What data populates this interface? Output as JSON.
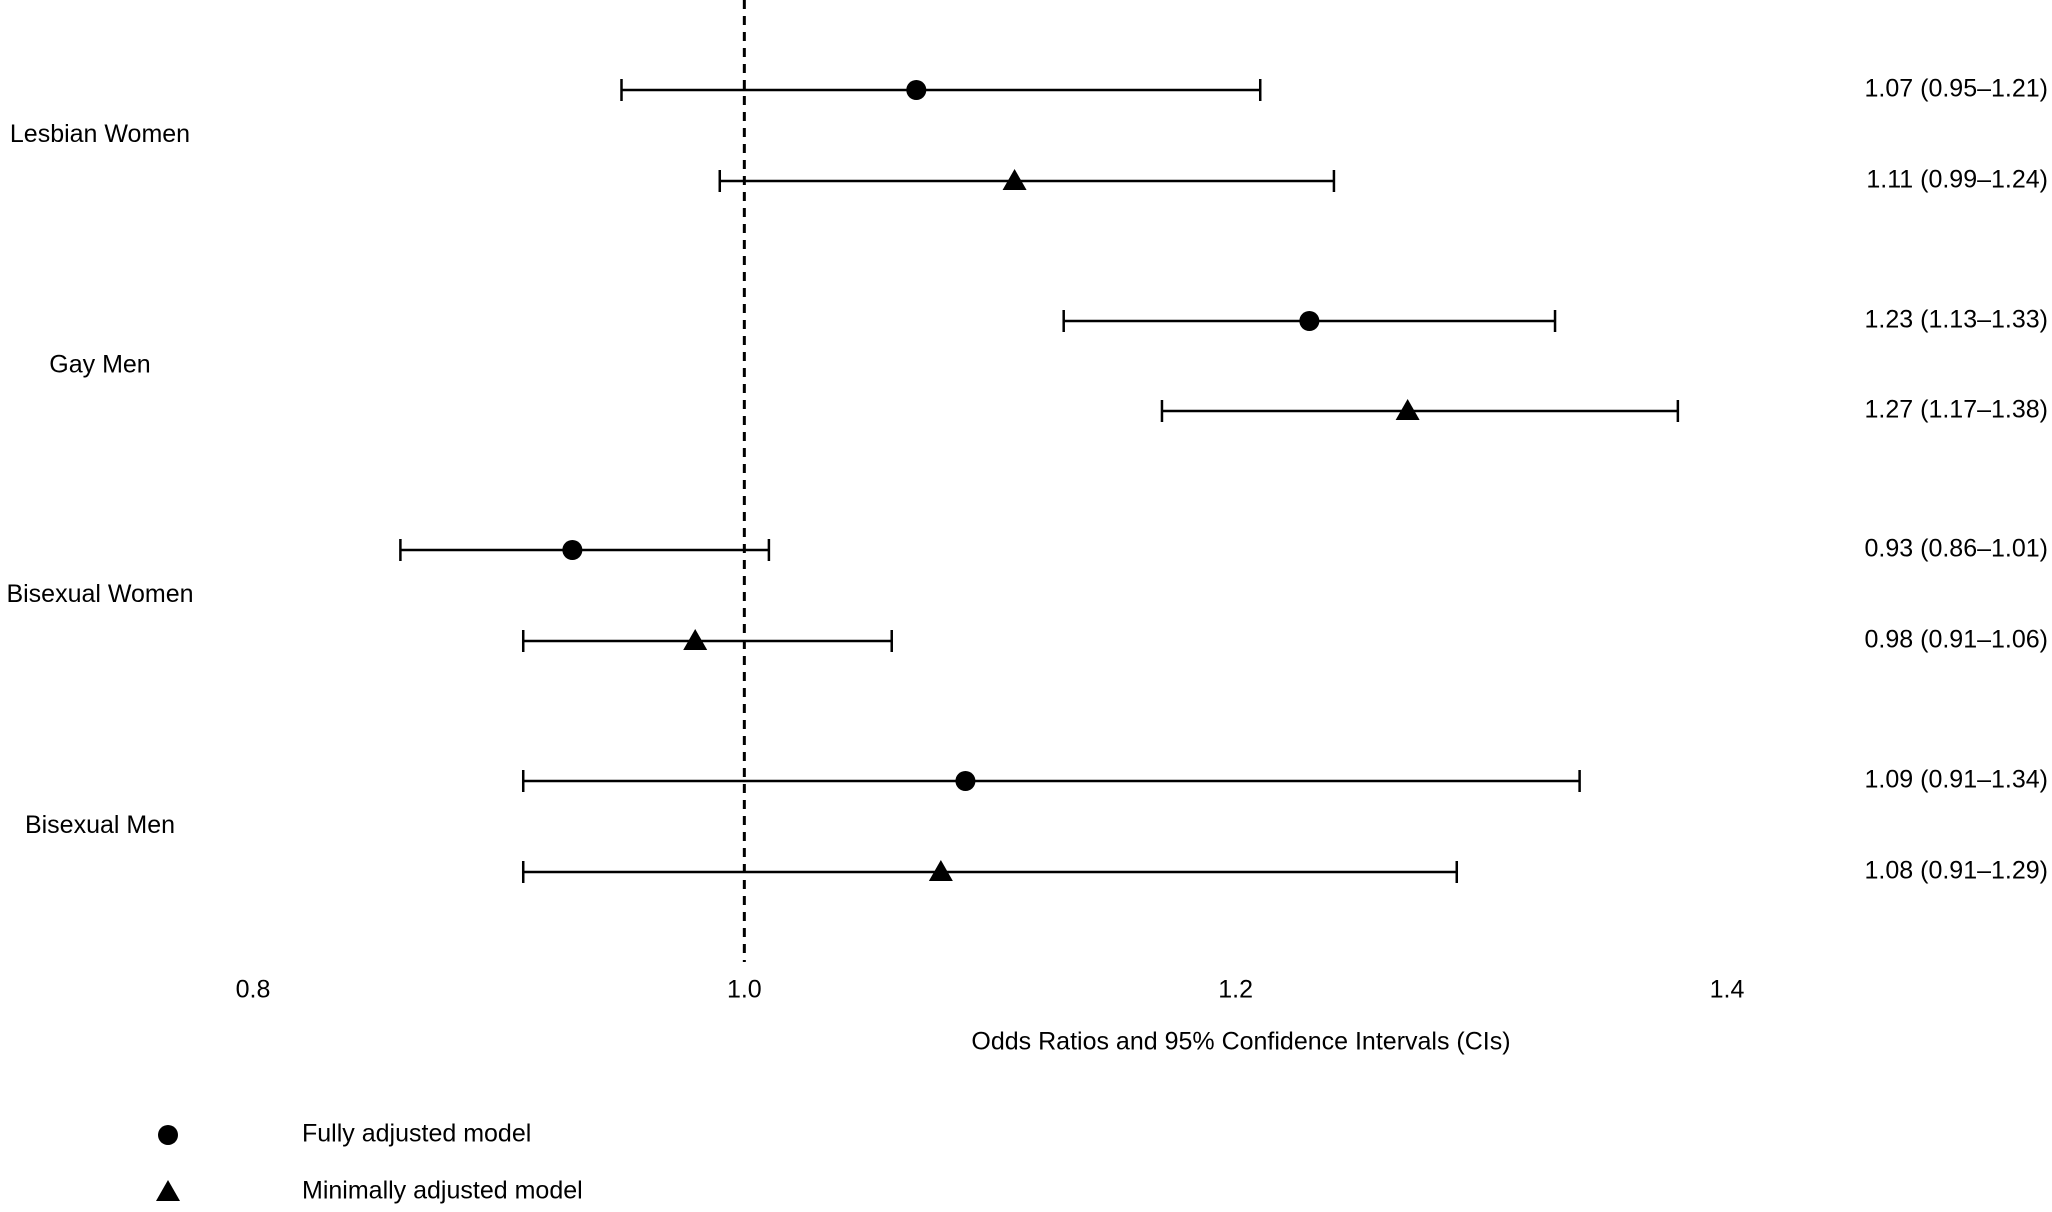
{
  "chart_data": {
    "type": "forest",
    "xlabel": "Odds Ratios and 95% Confidence Intervals (CIs)",
    "xlim": [
      0.7,
      1.5
    ],
    "xticks": [
      0.8,
      {
        "value": 1,
        "label": "1.0"
      },
      1.2,
      1.4
    ],
    "reference_line": 1,
    "categories": [
      "Lesbian Women",
      "Gay Men",
      "Bisexual Women",
      "Bisexual Men"
    ],
    "series": [
      {
        "name": "Fully adjusted model",
        "marker": "circle",
        "color": "#000000",
        "values": [
          1.07,
          1.23,
          0.93,
          1.09
        ],
        "lower": [
          0.95,
          1.13,
          0.86,
          0.91
        ],
        "upper": [
          1.21,
          1.33,
          1.01,
          1.34
        ],
        "value_labels": [
          "1.07 (0.95–1.21)",
          "1.23 (1.13–1.33)",
          "0.93 (0.86–1.01)",
          "1.09 (0.91–1.34)"
        ]
      },
      {
        "name": "Minimally adjusted model",
        "marker": "triangle",
        "color": "#000000",
        "values": [
          1.11,
          1.27,
          0.98,
          1.08
        ],
        "lower": [
          0.99,
          1.17,
          0.91,
          0.91
        ],
        "upper": [
          1.24,
          1.38,
          1.06,
          1.29
        ],
        "value_labels": [
          "1.11 (0.99–1.24)",
          "1.27 (1.17–1.38)",
          "0.98 (0.91–1.06)",
          "1.08 (0.91–1.29)"
        ]
      }
    ]
  }
}
